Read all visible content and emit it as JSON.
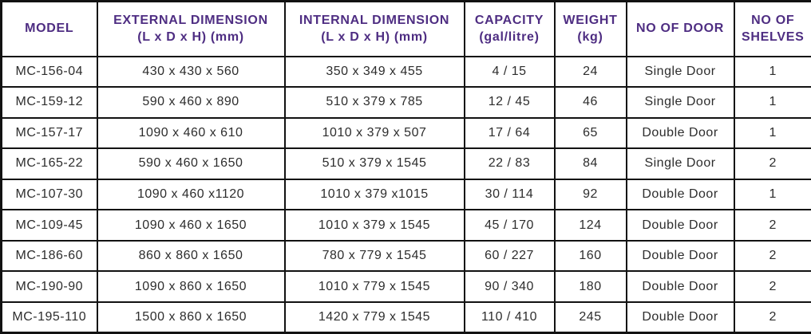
{
  "table": {
    "headers": [
      {
        "label": "MODEL",
        "sub": ""
      },
      {
        "label": "EXTERNAL DIMENSION",
        "sub": "(L x D x H) (mm)"
      },
      {
        "label": "INTERNAL DIMENSION",
        "sub": "(L x D x H) (mm)"
      },
      {
        "label": "CAPACITY",
        "sub": "(gal/litre)"
      },
      {
        "label": "WEIGHT",
        "sub": "(kg)"
      },
      {
        "label": "NO OF DOOR",
        "sub": ""
      },
      {
        "label": "NO OF SHELVES",
        "sub": ""
      }
    ],
    "rows": [
      {
        "model": "MC-156-04",
        "external": "430 x 430 x 560",
        "internal": "350 x 349 x 455",
        "capacity": "4 / 15",
        "weight": "24",
        "door": "Single Door",
        "shelves": "1"
      },
      {
        "model": "MC-159-12",
        "external": "590 x 460 x 890",
        "internal": "510 x 379 x 785",
        "capacity": "12 / 45",
        "weight": "46",
        "door": "Single Door",
        "shelves": "1"
      },
      {
        "model": "MC-157-17",
        "external": "1090 x 460 x 610",
        "internal": "1010 x 379 x 507",
        "capacity": "17 / 64",
        "weight": "65",
        "door": "Double Door",
        "shelves": "1"
      },
      {
        "model": "MC-165-22",
        "external": "590 x 460 x 1650",
        "internal": "510 x 379 x 1545",
        "capacity": "22 / 83",
        "weight": "84",
        "door": "Single Door",
        "shelves": "2"
      },
      {
        "model": "MC-107-30",
        "external": "1090 x 460 x1120",
        "internal": "1010 x 379 x1015",
        "capacity": "30 / 114",
        "weight": "92",
        "door": "Double Door",
        "shelves": "1"
      },
      {
        "model": "MC-109-45",
        "external": "1090 x 460 x 1650",
        "internal": "1010 x 379 x 1545",
        "capacity": "45 / 170",
        "weight": "124",
        "door": "Double Door",
        "shelves": "2"
      },
      {
        "model": "MC-186-60",
        "external": "860 x 860 x 1650",
        "internal": "780 x 779 x 1545",
        "capacity": "60 / 227",
        "weight": "160",
        "door": "Double Door",
        "shelves": "2"
      },
      {
        "model": "MC-190-90",
        "external": "1090 x 860 x 1650",
        "internal": "1010 x 779 x 1545",
        "capacity": "90 / 340",
        "weight": "180",
        "door": "Double Door",
        "shelves": "2"
      },
      {
        "model": "MC-195-110",
        "external": "1500 x 860 x 1650",
        "internal": "1420 x 779 x 1545",
        "capacity": "110 / 410",
        "weight": "245",
        "door": "Double Door",
        "shelves": "2"
      }
    ],
    "colors": {
      "header_text": "#4e2d82",
      "body_text": "#2d2d2d",
      "border": "#121212"
    }
  }
}
